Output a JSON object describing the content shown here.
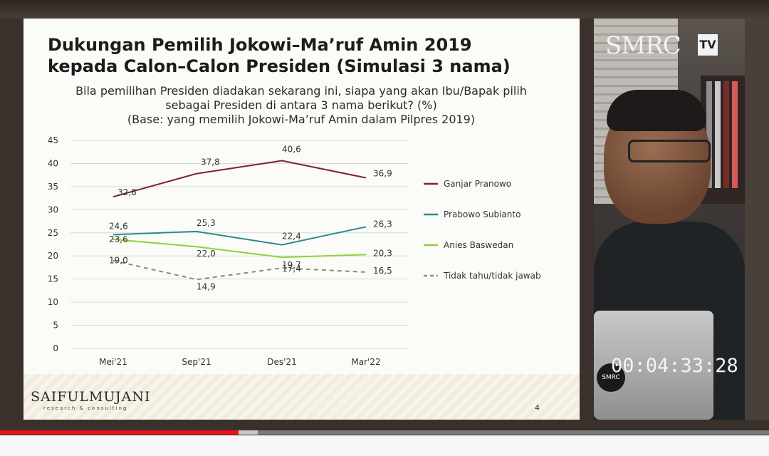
{
  "slide": {
    "title_line1": "Dukungan Pemilih Jokowi–Ma’ruf Amin 2019",
    "title_line2": "kepada Calon–Calon Presiden (Simulasi 3 nama)",
    "subtitle_line1": "Bila pemilihan Presiden diadakan sekarang ini, siapa yang akan Ibu/Bapak pilih",
    "subtitle_line2": "sebagai Presiden di antara 3 nama berikut? (%)",
    "subtitle_line3": "(Base: yang memilih Jokowi-Ma’ruf Amin dalam Pilpres 2019)",
    "logo": "SAIFULMUJANI",
    "logo_sub": "research & consulting",
    "page_number": "4"
  },
  "chart_data": {
    "type": "line",
    "categories": [
      "Mei'21",
      "Sep'21",
      "Des'21",
      "Mar'22"
    ],
    "ylim": [
      0,
      45
    ],
    "yticks": [
      0,
      5,
      10,
      15,
      20,
      25,
      30,
      35,
      40,
      45
    ],
    "grid": true,
    "legend_position": "right",
    "series": [
      {
        "name": "Ganjar Pranowo",
        "values": [
          32.8,
          37.8,
          40.6,
          36.9
        ],
        "labels": [
          "32,8",
          "37,8",
          "40,6",
          "36,9"
        ],
        "color": "#7b2430",
        "dash": false
      },
      {
        "name": "Prabowo Subianto",
        "values": [
          24.6,
          25.3,
          22.4,
          26.3
        ],
        "labels": [
          "24,6",
          "25,3",
          "22,4",
          "26,3"
        ],
        "color": "#2f8a8c",
        "dash": false
      },
      {
        "name": "Anies Baswedan",
        "values": [
          23.6,
          22.0,
          19.7,
          20.3
        ],
        "labels": [
          "23,6",
          "22,0",
          "19,7",
          "20,3"
        ],
        "color": "#8fd13a",
        "dash": false
      },
      {
        "name": "Tidak tahu/tidak jawab",
        "values": [
          19.0,
          14.9,
          17.4,
          16.5
        ],
        "labels": [
          "19,0",
          "14,9",
          "17,4",
          "16,5"
        ],
        "color": "#8a8a8a",
        "dash": true
      }
    ]
  },
  "video": {
    "channel_logo": "SMRC",
    "channel_tv": "TV",
    "badge": "SMRC",
    "timer": "00:04:33:28"
  },
  "player": {
    "progress_fraction": 0.31,
    "buffer_fraction": 0.335
  }
}
